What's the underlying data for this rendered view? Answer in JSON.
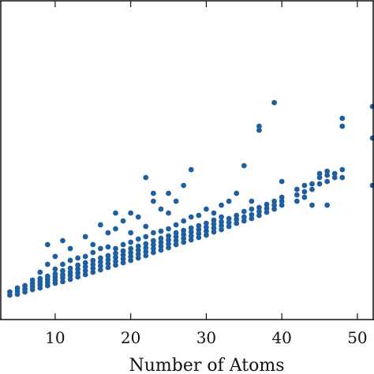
{
  "chart_data": {
    "type": "scatter",
    "xlabel": "Number of Atoms",
    "color": "#1f5fa0",
    "xlim": [
      2.7,
      52.2
    ],
    "ylim": [
      0,
      405
    ],
    "xticks": [
      10,
      20,
      30,
      40,
      50
    ],
    "x": [
      4,
      4,
      5,
      5,
      5,
      6,
      6,
      6,
      7,
      7,
      7,
      7,
      8,
      8,
      8,
      8,
      8,
      9,
      9,
      9,
      9,
      9,
      9,
      10,
      10,
      10,
      10,
      10,
      10,
      11,
      11,
      11,
      11,
      11,
      11,
      12,
      12,
      12,
      12,
      12,
      12,
      13,
      13,
      13,
      13,
      13,
      14,
      14,
      14,
      14,
      14,
      14,
      15,
      15,
      15,
      15,
      15,
      15,
      16,
      16,
      16,
      16,
      16,
      16,
      17,
      17,
      17,
      17,
      17,
      17,
      18,
      18,
      18,
      18,
      18,
      18,
      18,
      19,
      19,
      19,
      19,
      19,
      19,
      20,
      20,
      20,
      20,
      20,
      20,
      20,
      21,
      21,
      21,
      21,
      21,
      21,
      22,
      22,
      22,
      22,
      22,
      22,
      22,
      23,
      23,
      23,
      23,
      23,
      23,
      23,
      24,
      24,
      24,
      24,
      24,
      24,
      25,
      25,
      25,
      25,
      25,
      25,
      25,
      26,
      26,
      26,
      26,
      26,
      26,
      27,
      27,
      27,
      27,
      27,
      27,
      28,
      28,
      28,
      28,
      28,
      28,
      29,
      29,
      29,
      29,
      29,
      30,
      30,
      30,
      30,
      30,
      31,
      31,
      31,
      31,
      31,
      32,
      32,
      32,
      32,
      32,
      33,
      33,
      33,
      33,
      34,
      34,
      34,
      34,
      35,
      35,
      35,
      35,
      36,
      36,
      36,
      36,
      37,
      37,
      37,
      37,
      37,
      38,
      38,
      38,
      39,
      39,
      39,
      39,
      40,
      40,
      40,
      40,
      42,
      42,
      42,
      43,
      43,
      43,
      44,
      44,
      44,
      45,
      45,
      45,
      46,
      46,
      46,
      46,
      47,
      47,
      48,
      48,
      48,
      48,
      52,
      52,
      52
    ],
    "values": [
      31,
      35,
      32,
      36,
      40,
      35,
      39,
      43,
      38,
      42,
      46,
      50,
      40,
      44,
      48,
      52,
      60,
      43,
      47,
      51,
      55,
      70,
      95,
      46,
      50,
      54,
      58,
      64,
      80,
      48,
      53,
      57,
      62,
      70,
      100,
      51,
      56,
      60,
      65,
      75,
      90,
      54,
      59,
      64,
      69,
      78,
      57,
      62,
      67,
      72,
      80,
      105,
      60,
      65,
      70,
      75,
      85,
      95,
      63,
      68,
      73,
      78,
      90,
      120,
      66,
      71,
      76,
      81,
      92,
      110,
      69,
      74,
      79,
      84,
      90,
      115,
      135,
      72,
      77,
      82,
      87,
      95,
      125,
      75,
      80,
      85,
      90,
      98,
      110,
      135,
      78,
      83,
      88,
      93,
      102,
      130,
      81,
      86,
      91,
      96,
      105,
      118,
      180,
      85,
      90,
      95,
      100,
      110,
      160,
      150,
      88,
      93,
      98,
      103,
      112,
      140,
      91,
      96,
      101,
      106,
      115,
      135,
      160,
      95,
      100,
      105,
      110,
      120,
      150,
      98,
      103,
      108,
      113,
      125,
      170,
      101,
      106,
      111,
      116,
      130,
      190,
      104,
      109,
      114,
      119,
      132,
      107,
      112,
      117,
      122,
      140,
      111,
      116,
      121,
      126,
      135,
      114,
      119,
      124,
      130,
      145,
      118,
      123,
      128,
      150,
      122,
      127,
      132,
      160,
      125,
      130,
      137,
      195,
      128,
      133,
      140,
      150,
      132,
      137,
      142,
      240,
      245,
      136,
      141,
      146,
      140,
      145,
      150,
      275,
      145,
      150,
      155,
      175,
      150,
      158,
      165,
      155,
      162,
      170,
      145,
      165,
      172,
      172,
      180,
      185,
      145,
      175,
      183,
      188,
      180,
      185,
      180,
      190,
      255,
      245,
      170,
      270,
      230
    ]
  }
}
